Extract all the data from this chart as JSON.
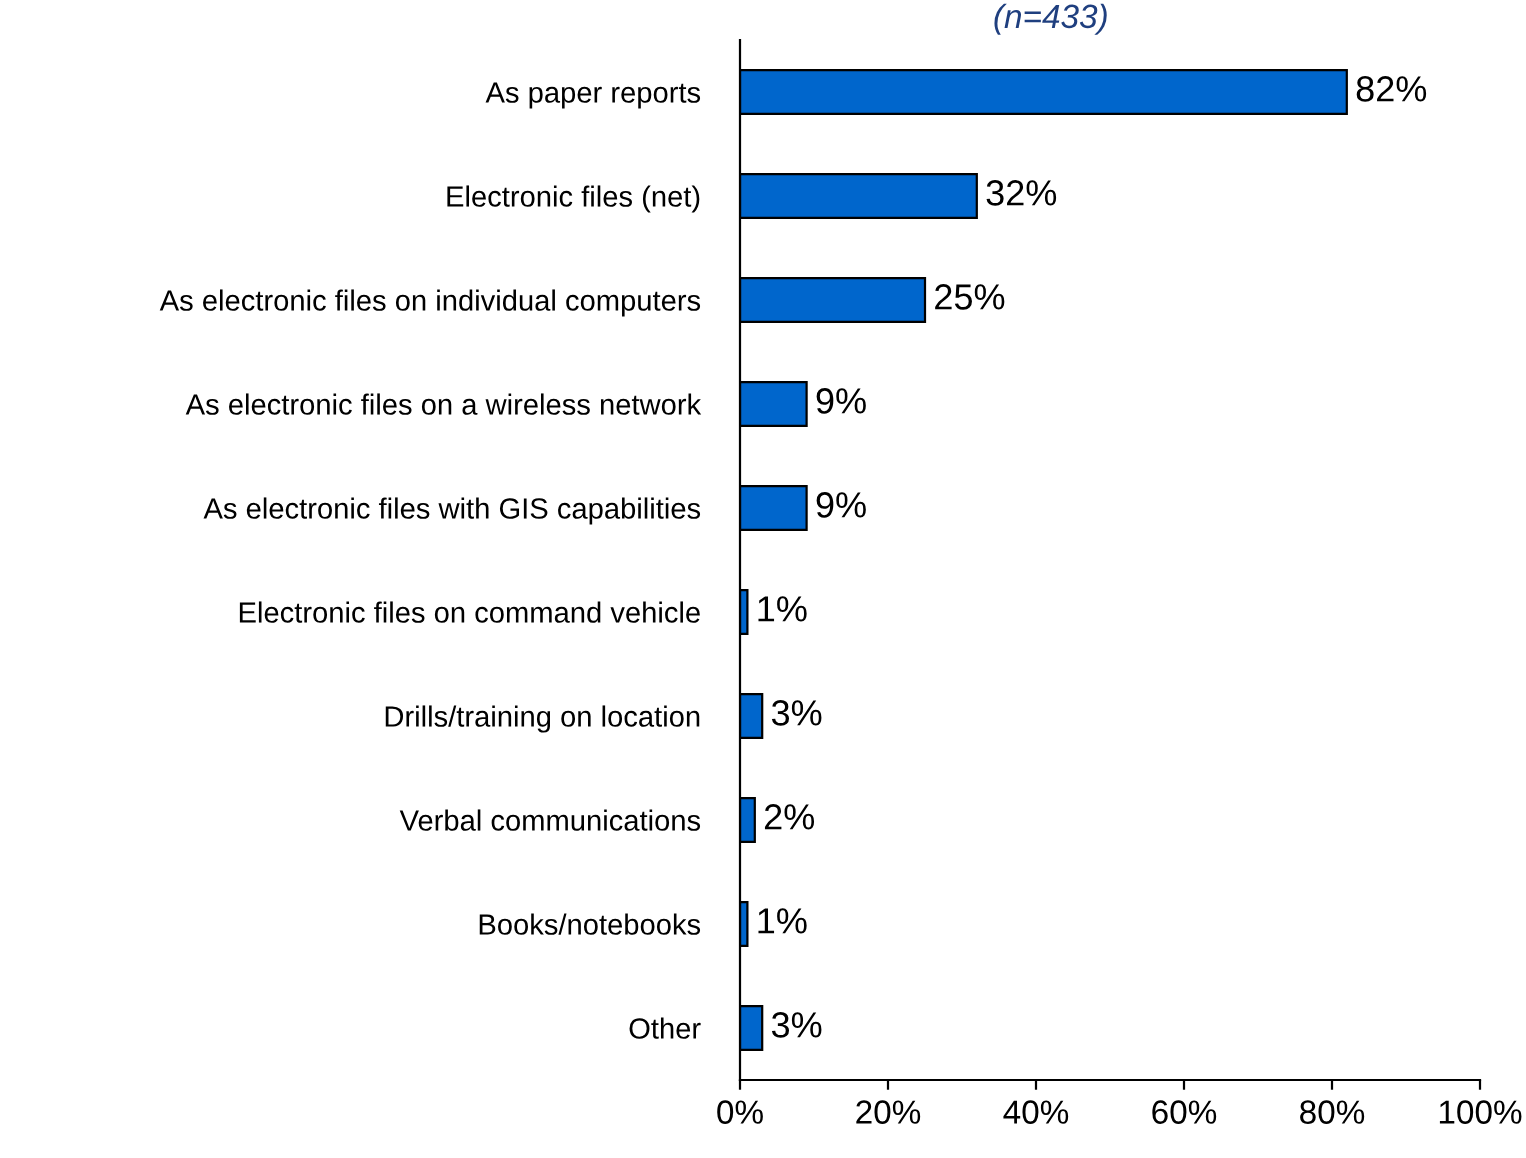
{
  "chart_data": {
    "type": "bar",
    "orientation": "horizontal",
    "subtitle": "(n=433)",
    "categories": [
      "As paper reports",
      "Electronic files (net)",
      "As electronic files on individual computers",
      "As electronic files on a wireless network",
      "As electronic files with GIS capabilities",
      "Electronic files on command vehicle",
      "Drills/training on location",
      "Verbal communications",
      "Books/notebooks",
      "Other"
    ],
    "values": [
      82,
      32,
      25,
      9,
      9,
      1,
      3,
      2,
      1,
      3
    ],
    "value_labels": [
      "82%",
      "32%",
      "25%",
      "9%",
      "9%",
      "1%",
      "3%",
      "2%",
      "1%",
      "3%"
    ],
    "color": "#0066cc",
    "xlim": [
      0,
      100
    ],
    "xticks": [
      {
        "value": 0,
        "label": "0%"
      },
      {
        "value": 20,
        "label": "20%"
      },
      {
        "value": 40,
        "label": "40%"
      },
      {
        "value": 60,
        "label": "60%"
      },
      {
        "value": 80,
        "label": "80%"
      },
      {
        "value": 100,
        "label": "100%"
      }
    ],
    "grid": false,
    "legend": false
  }
}
